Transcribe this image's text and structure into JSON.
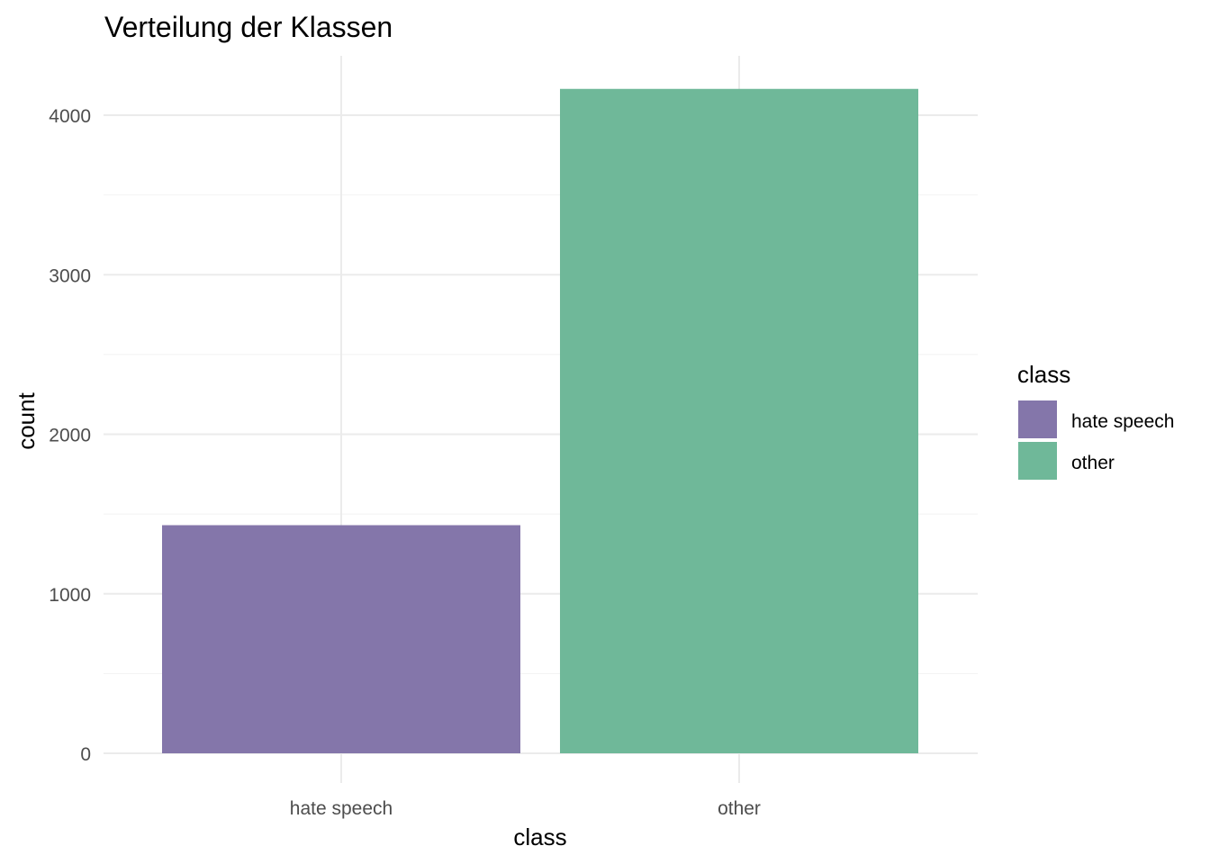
{
  "chart_data": {
    "type": "bar",
    "title": "Verteilung der Klassen",
    "xlabel": "class",
    "ylabel": "count",
    "categories": [
      "hate speech",
      "other"
    ],
    "values": [
      1430,
      4165
    ],
    "ylim": [
      0,
      4200
    ],
    "yticks": [
      0,
      1000,
      2000,
      3000,
      4000
    ],
    "grid": true,
    "colors": [
      "#8476AA",
      "#6FB899"
    ],
    "legend": {
      "title": "class",
      "position": "right",
      "items": [
        "hate speech",
        "other"
      ]
    }
  }
}
